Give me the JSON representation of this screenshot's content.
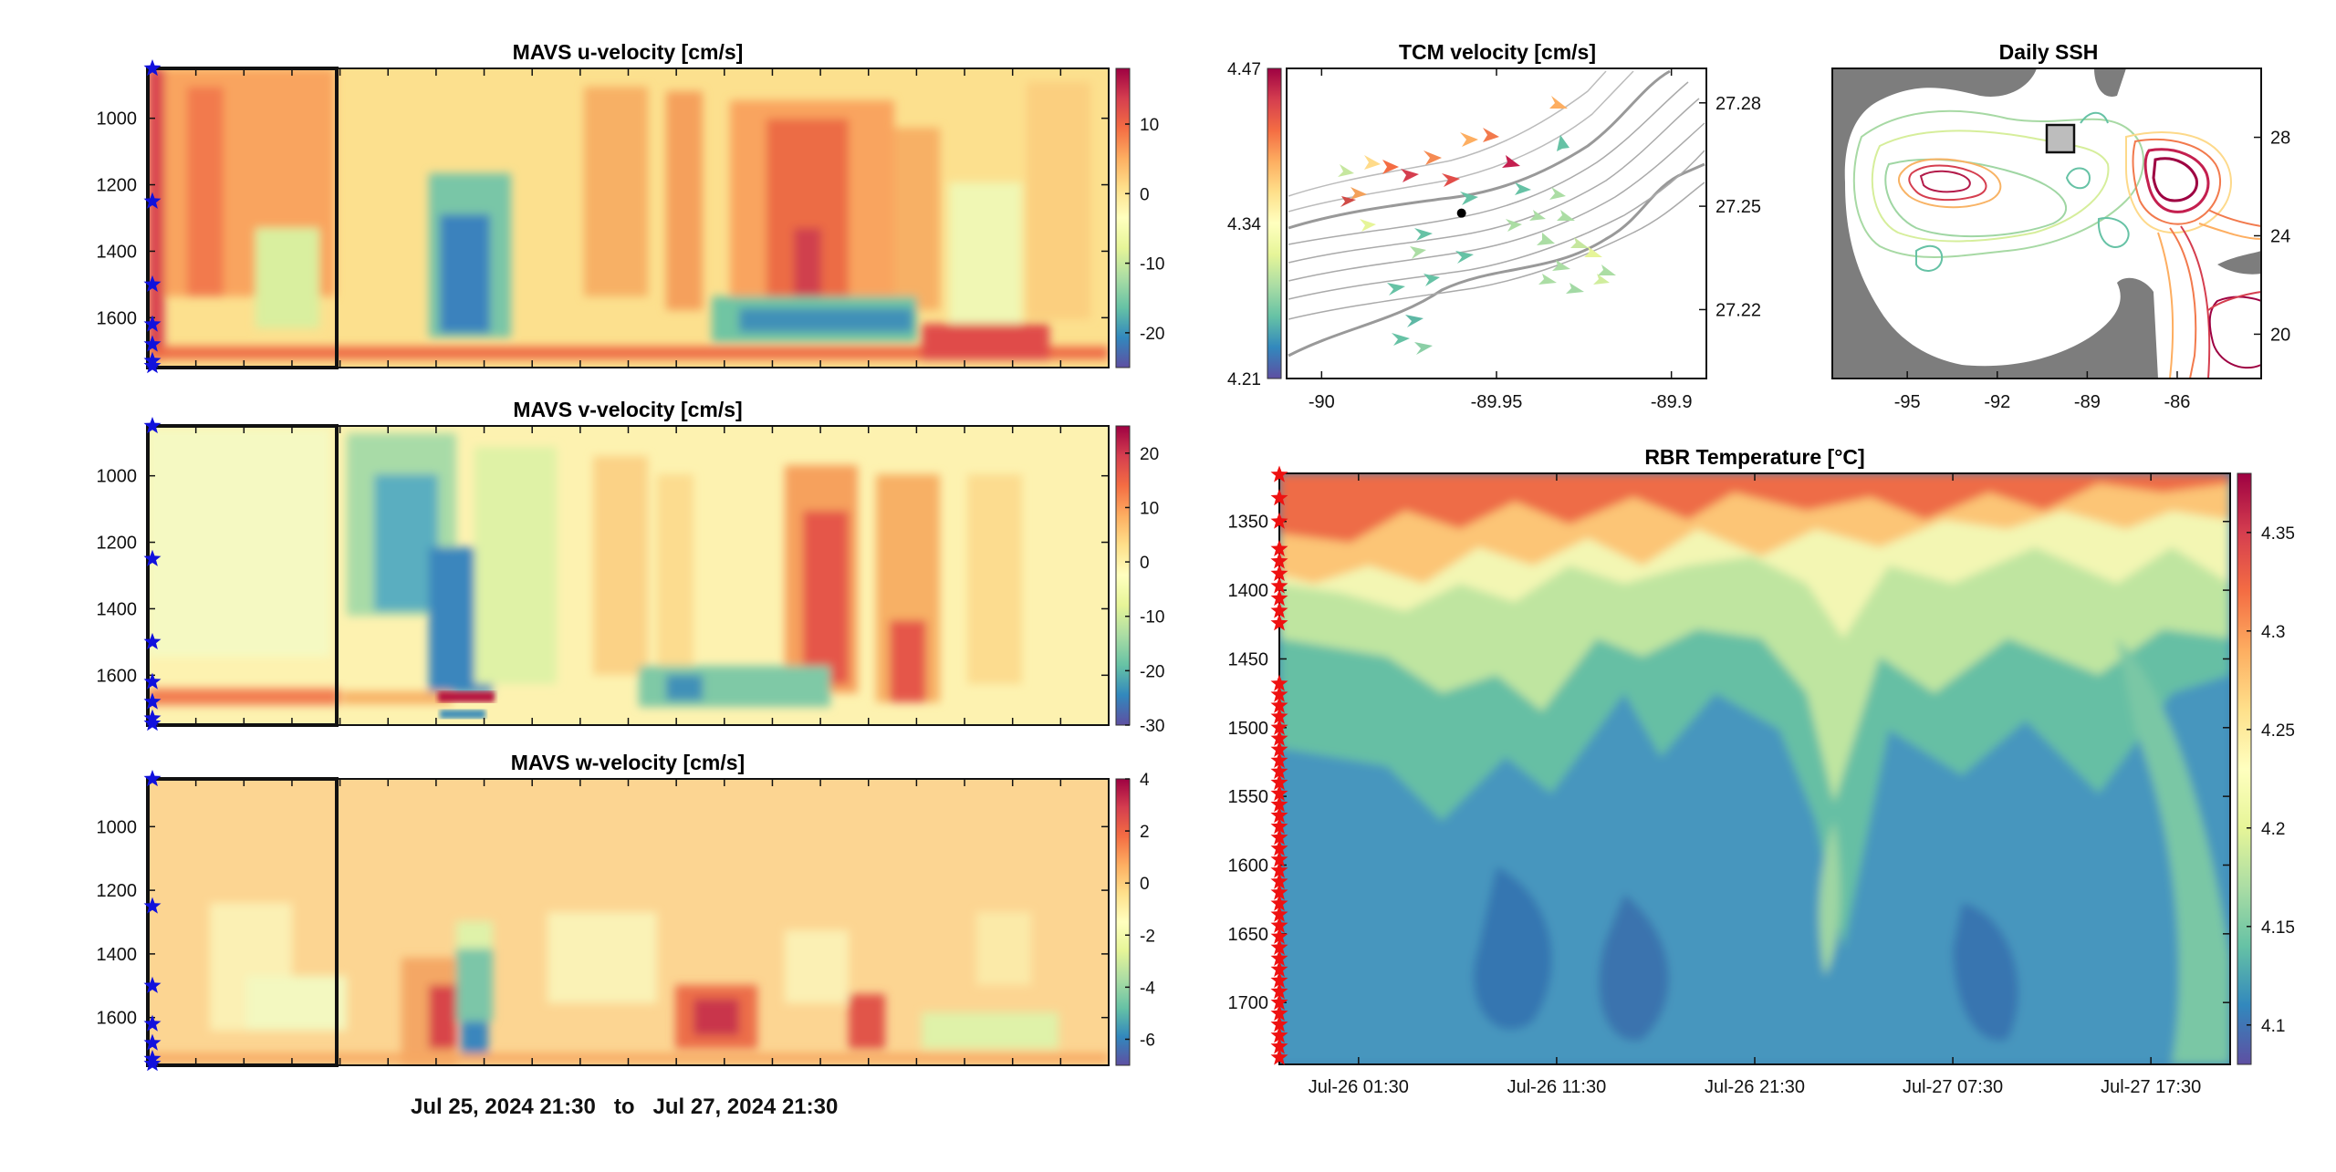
{
  "time_range": {
    "start": "Jul 25, 2024 21:30",
    "joiner": "to",
    "end": "Jul 27, 2024 21:30"
  },
  "colormap": [
    "#5e4fa2",
    "#3288bd",
    "#66c2a5",
    "#abdda4",
    "#e6f598",
    "#ffffbf",
    "#fee08b",
    "#fdae61",
    "#f46d43",
    "#d53e4f",
    "#9e0142"
  ],
  "chart_data": [
    {
      "type": "heatmap",
      "title": "MAVS u-velocity [cm/s]",
      "y_ticks": [
        "1000",
        "1200",
        "1400",
        "1600"
      ],
      "y_tick_values": [
        1000,
        1200,
        1400,
        1600
      ],
      "ylim": [
        850,
        1750
      ],
      "y_reversed": true,
      "colorbar_ticks": [
        "10",
        "0",
        "-10",
        "-20"
      ],
      "colorbar_tick_values": [
        10,
        0,
        -10,
        -20
      ],
      "clim": [
        -25,
        18
      ],
      "instrument_depths": [
        850,
        1250,
        1500,
        1620,
        1680,
        1730,
        1745
      ],
      "marker_color": "#1111dd"
    },
    {
      "type": "heatmap",
      "title": "MAVS v-velocity [cm/s]",
      "y_ticks": [
        "1000",
        "1200",
        "1400",
        "1600"
      ],
      "y_tick_values": [
        1000,
        1200,
        1400,
        1600
      ],
      "ylim": [
        850,
        1750
      ],
      "y_reversed": true,
      "colorbar_ticks": [
        "20",
        "10",
        "0",
        "-10",
        "-20",
        "-30"
      ],
      "colorbar_tick_values": [
        20,
        10,
        0,
        -10,
        -20,
        -30
      ],
      "clim": [
        -30,
        25
      ],
      "instrument_depths": [
        850,
        1250,
        1500,
        1620,
        1680,
        1730,
        1745
      ],
      "marker_color": "#1111dd"
    },
    {
      "type": "heatmap",
      "title": "MAVS w-velocity [cm/s]",
      "y_ticks": [
        "1000",
        "1200",
        "1400",
        "1600"
      ],
      "y_tick_values": [
        1000,
        1200,
        1400,
        1600
      ],
      "ylim": [
        850,
        1750
      ],
      "y_reversed": true,
      "colorbar_ticks": [
        "4",
        "2",
        "0",
        "-2",
        "-4",
        "-6"
      ],
      "colorbar_tick_values": [
        4,
        2,
        0,
        -2,
        -4,
        -6
      ],
      "clim": [
        -7,
        4
      ],
      "instrument_depths": [
        850,
        1250,
        1500,
        1620,
        1680,
        1730,
        1745
      ],
      "marker_color": "#1111dd"
    },
    {
      "type": "scatter",
      "title": "TCM velocity [cm/s]",
      "x_ticks": [
        "-90",
        "-89.95",
        "-89.9"
      ],
      "x_tick_values": [
        -90,
        -89.95,
        -89.9
      ],
      "xlim": [
        -90.01,
        -89.89
      ],
      "y_ticks": [
        "27.28",
        "27.25",
        "27.22"
      ],
      "y_tick_values": [
        27.28,
        27.25,
        27.22
      ],
      "ylim": [
        27.2,
        27.29
      ],
      "colorbar_ticks": [
        "4.47",
        "4.34",
        "4.21"
      ],
      "colorbar_tick_values": [
        4.47,
        4.34,
        4.21
      ],
      "clim": [
        4.21,
        4.47
      ],
      "site": {
        "lon": -89.96,
        "lat": 27.248
      }
    },
    {
      "type": "map",
      "title": "Daily SSH",
      "x_ticks": [
        "-95",
        "-92",
        "-89",
        "-86"
      ],
      "x_tick_values": [
        -95,
        -92,
        -89,
        -86
      ],
      "xlim": [
        -97.5,
        -83.2
      ],
      "y_ticks": [
        "28",
        "24",
        "20"
      ],
      "y_tick_values": [
        28,
        24,
        20
      ],
      "ylim": [
        18.2,
        30.8
      ]
    },
    {
      "type": "heatmap",
      "title": "RBR Temperature [°C]",
      "x_ticks": [
        "Jul-26 01:30",
        "Jul-26 11:30",
        "Jul-26 21:30",
        "Jul-27 07:30",
        "Jul-27 17:30"
      ],
      "x_tick_hours": [
        4,
        14,
        24,
        34,
        44
      ],
      "xlim_hours": [
        0,
        48
      ],
      "y_ticks": [
        "1350",
        "1400",
        "1450",
        "1500",
        "1550",
        "1600",
        "1650",
        "1700"
      ],
      "y_tick_values": [
        1350,
        1400,
        1450,
        1500,
        1550,
        1600,
        1650,
        1700
      ],
      "ylim": [
        1315,
        1745
      ],
      "y_reversed": true,
      "colorbar_ticks": [
        "4.35",
        "4.3",
        "4.25",
        "4.2",
        "4.15",
        "4.1"
      ],
      "colorbar_tick_values": [
        4.35,
        4.3,
        4.25,
        4.2,
        4.15,
        4.1
      ],
      "clim": [
        4.08,
        4.38
      ],
      "marker_color": "#ee1111"
    }
  ]
}
